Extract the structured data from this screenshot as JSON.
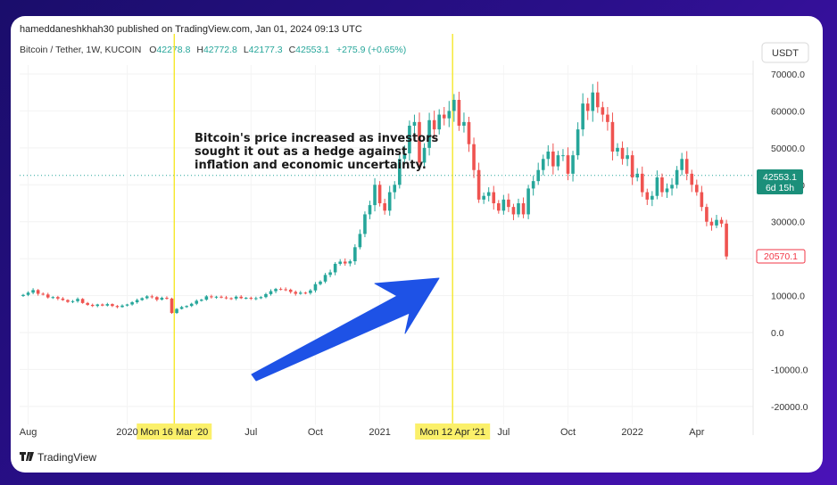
{
  "header": {
    "publisher": "hameddaneshkhah30 published on TradingView.com, Jan 01, 2024 09:13 UTC",
    "symbol": "Bitcoin / Tether, 1W, KUCOIN",
    "o_label": "O",
    "o_value": "42278.8",
    "h_label": "H",
    "h_value": "42772.8",
    "l_label": "L",
    "l_value": "42177.3",
    "c_label": "C",
    "c_value": "42553.1",
    "change": "+275.9 (+0.65%)"
  },
  "currency_button": "USDT",
  "price_badge": {
    "price": "42553.1",
    "countdown": "6d 15h"
  },
  "low_badge": "20570.1",
  "annotation": [
    "Bitcoin's price increased as investors",
    "sought it out as a hedge against",
    "inflation and economic uncertainty."
  ],
  "vlines": [
    {
      "label": "Mon 16 Mar '20",
      "t": 30.5
    },
    {
      "label": "Mon 12 Apr '21",
      "t": 86.7
    }
  ],
  "footer": {
    "brand": "TradingView"
  },
  "colors": {
    "up": "#26a69a",
    "down": "#ef5350",
    "arrow": "#1e52e6",
    "vline": "#f5e61b",
    "badge_green": "#1b8f7a",
    "badge_red": "#f23645"
  },
  "chart_data": {
    "type": "candlestick",
    "title": "Bitcoin / Tether, 1W, KUCOIN",
    "ylabel": "USDT",
    "ylim": [
      -20000,
      70000
    ],
    "y_ticks": [
      "70000.0",
      "60000.0",
      "50000.0",
      "40000.0",
      "30000.0",
      "20000.0",
      "10000.0",
      "0.0",
      "-10000.0",
      "-20000.0"
    ],
    "x_ticks": [
      {
        "label": "Aug",
        "t": 1
      },
      {
        "label": "2020",
        "t": 21
      },
      {
        "label": "Jul",
        "t": 46
      },
      {
        "label": "Oct",
        "t": 59
      },
      {
        "label": "2021",
        "t": 72
      },
      {
        "label": "Jul",
        "t": 97
      },
      {
        "label": "Oct",
        "t": 110
      },
      {
        "label": "2022",
        "t": 123
      },
      {
        "label": "Apr",
        "t": 136
      }
    ],
    "last_price": 42553.1,
    "reference_price": 42553.1,
    "candles_note": "approximate weekly OHLC read from chart, t = week index",
    "close_path": [
      10200,
      10800,
      11500,
      10500,
      10300,
      9500,
      9600,
      9200,
      8800,
      8300,
      8500,
      9100,
      8000,
      7500,
      7200,
      7600,
      7300,
      7700,
      7200,
      6900,
      7300,
      7600,
      8200,
      8800,
      9300,
      9800,
      9600,
      8900,
      9400,
      9200,
      5300,
      6400,
      6900,
      7200,
      7800,
      8600,
      8900,
      9800,
      9600,
      9700,
      9500,
      9300,
      9200,
      9700,
      9300,
      9400,
      9200,
      9300,
      9600,
      10400,
      11200,
      11800,
      11700,
      11600,
      11000,
      10500,
      10800,
      10700,
      11400,
      13100,
      13800,
      15600,
      16300,
      18600,
      19200,
      18700,
      19300,
      23100,
      26700,
      32000,
      34500,
      40000,
      35000,
      33000,
      38000,
      40000,
      47000,
      48500,
      56000,
      57000,
      46000,
      50000,
      57500,
      55000,
      59000,
      58000,
      60000,
      63000,
      56000,
      57000,
      51000,
      44000,
      36000,
      37000,
      38000,
      35000,
      33000,
      36000,
      34000,
      32000,
      35000,
      32000,
      39000,
      41000,
      44000,
      47000,
      49000,
      45000,
      48000,
      48000,
      43000,
      48000,
      55000,
      62000,
      60000,
      65000,
      61000,
      59000,
      57000,
      49000,
      50000,
      47000,
      48000,
      42000,
      43000,
      38000,
      36000,
      37000,
      42000,
      38000,
      39000,
      40000,
      44000,
      47000,
      43000,
      40000,
      38000,
      34000,
      30000,
      29000,
      30500,
      29500,
      20600
    ]
  }
}
